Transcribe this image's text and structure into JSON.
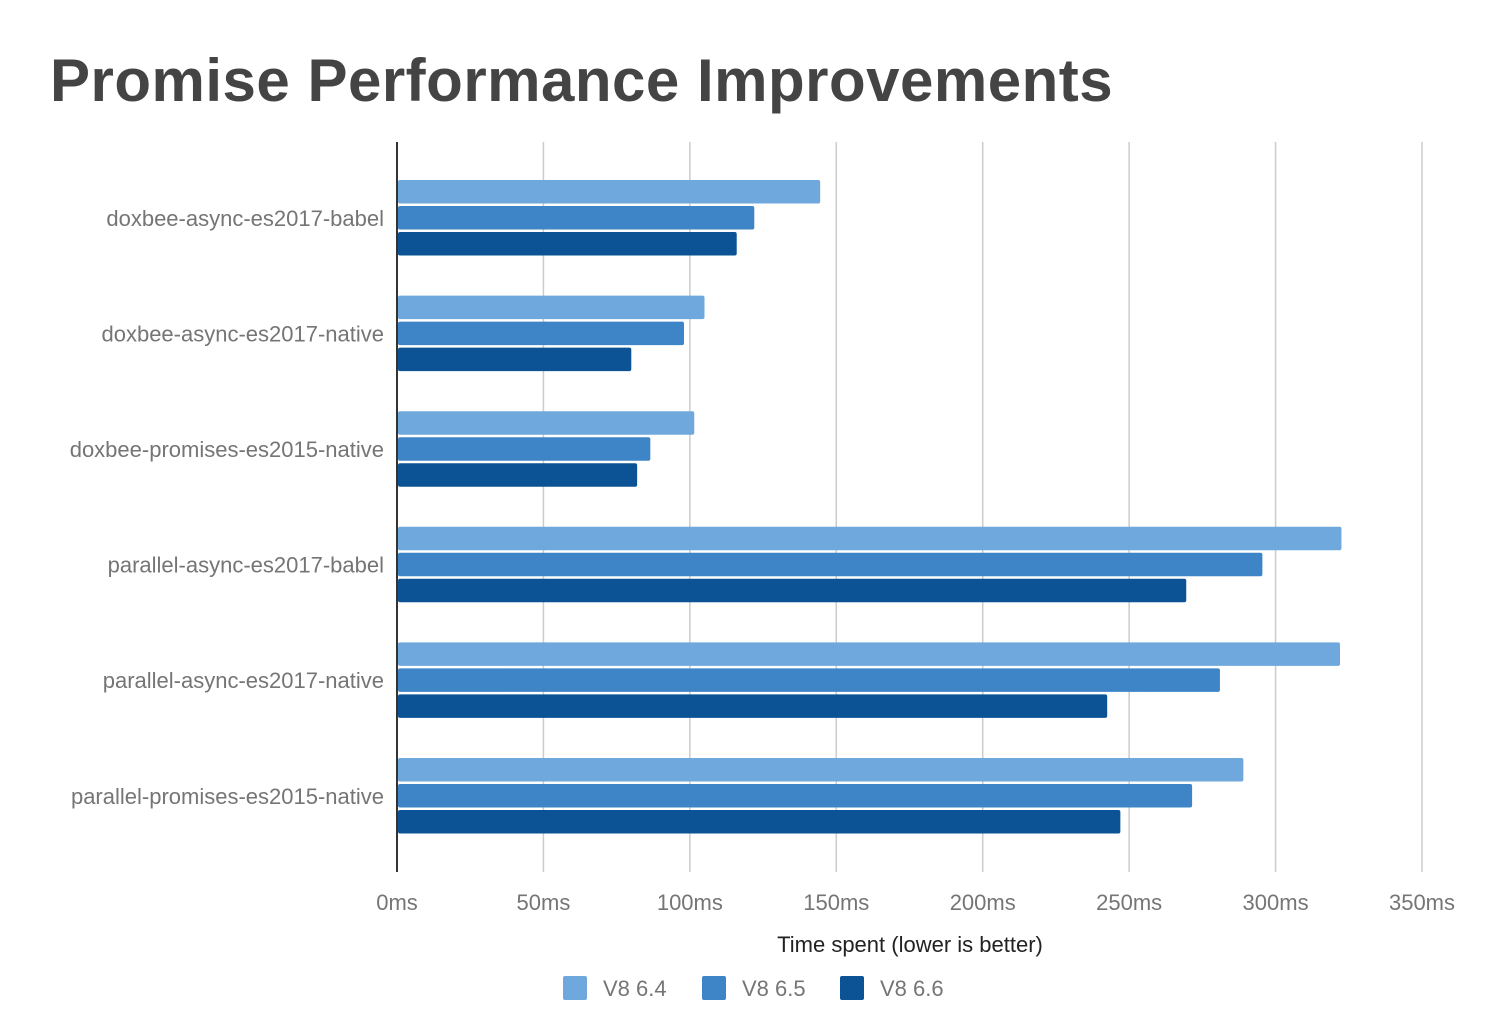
{
  "chart_data": {
    "type": "bar",
    "orientation": "horizontal",
    "title": "Promise Performance Improvements",
    "xlabel": "Time spent (lower is better)",
    "ylabel": "",
    "xlim": [
      0,
      350
    ],
    "x_ticks": [
      0,
      50,
      100,
      150,
      200,
      250,
      300,
      350
    ],
    "x_tick_labels": [
      "0ms",
      "50ms",
      "100ms",
      "150ms",
      "200ms",
      "250ms",
      "300ms",
      "350ms"
    ],
    "grid": true,
    "legend_position": "bottom",
    "categories": [
      "doxbee-async-es2017-babel",
      "doxbee-async-es2017-native",
      "doxbee-promises-es2015-native",
      "parallel-async-es2017-babel",
      "parallel-async-es2017-native",
      "parallel-promises-es2015-native"
    ],
    "series": [
      {
        "name": "V8 6.4",
        "color": "#6fa8dc",
        "values": [
          144.5,
          105,
          101.5,
          322.5,
          322,
          289
        ]
      },
      {
        "name": "V8 6.5",
        "color": "#3d85c6",
        "values": [
          122,
          98,
          86.5,
          295.5,
          281,
          271.5
        ]
      },
      {
        "name": "V8 6.6",
        "color": "#0b5394",
        "values": [
          116,
          80,
          82,
          269.5,
          242.5,
          247
        ]
      }
    ],
    "colors": {
      "grid": "#cccccc",
      "axis": "#333333"
    }
  }
}
